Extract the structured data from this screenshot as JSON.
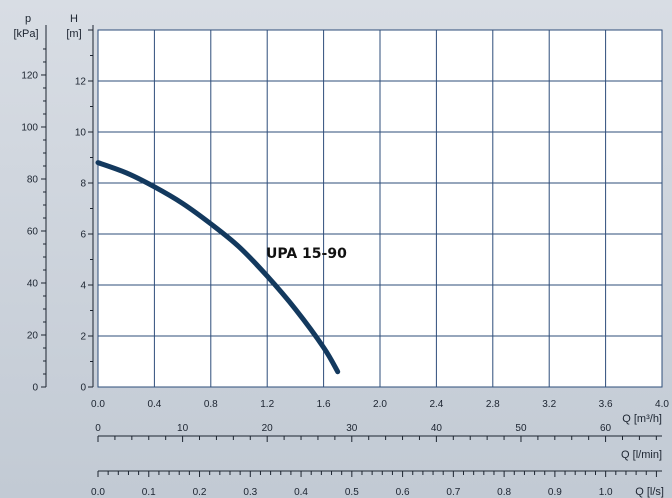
{
  "chart_data": {
    "type": "line",
    "title": "",
    "grid": true,
    "series": [
      {
        "name": "UPA 15-90",
        "x": [
          0.0,
          0.2,
          0.4,
          0.6,
          0.8,
          1.0,
          1.2,
          1.4,
          1.6,
          1.7
        ],
        "y": [
          8.8,
          8.4,
          7.85,
          7.2,
          6.4,
          5.5,
          4.35,
          3.05,
          1.55,
          0.6
        ]
      }
    ],
    "x_axis": {
      "label": "Q [m³/h]",
      "range": [
        0.0,
        4.0
      ],
      "ticks": [
        "0.0",
        "0.4",
        "0.8",
        "1.2",
        "1.6",
        "2.0",
        "2.4",
        "2.8",
        "3.2",
        "3.6",
        "4.0"
      ]
    },
    "x_axis_lmin": {
      "label": "Q [l/min]",
      "range": [
        0,
        66.67
      ],
      "ticks": [
        "0",
        "10",
        "20",
        "30",
        "40",
        "50",
        "60"
      ]
    },
    "x_axis_ls": {
      "label": "Q [l/s]",
      "range": [
        0.0,
        1.111
      ],
      "ticks": [
        "0.0",
        "0.1",
        "0.2",
        "0.3",
        "0.4",
        "0.5",
        "0.6",
        "0.7",
        "0.8",
        "0.9",
        "1.0"
      ]
    },
    "y_axis_head": {
      "label_top": "H",
      "label_unit": "[m]",
      "range": [
        0,
        14
      ],
      "ticks": [
        "0",
        "2",
        "4",
        "6",
        "8",
        "10",
        "12"
      ]
    },
    "y_axis_pressure": {
      "label_top": "p",
      "label_unit": "[kPa]",
      "range": [
        0,
        137.3
      ],
      "ticks": [
        "0",
        "20",
        "40",
        "60",
        "80",
        "100",
        "120"
      ]
    },
    "colors": {
      "curve": "#13395e",
      "grid": "#2e4d7a",
      "axis": "#1c2430"
    }
  }
}
